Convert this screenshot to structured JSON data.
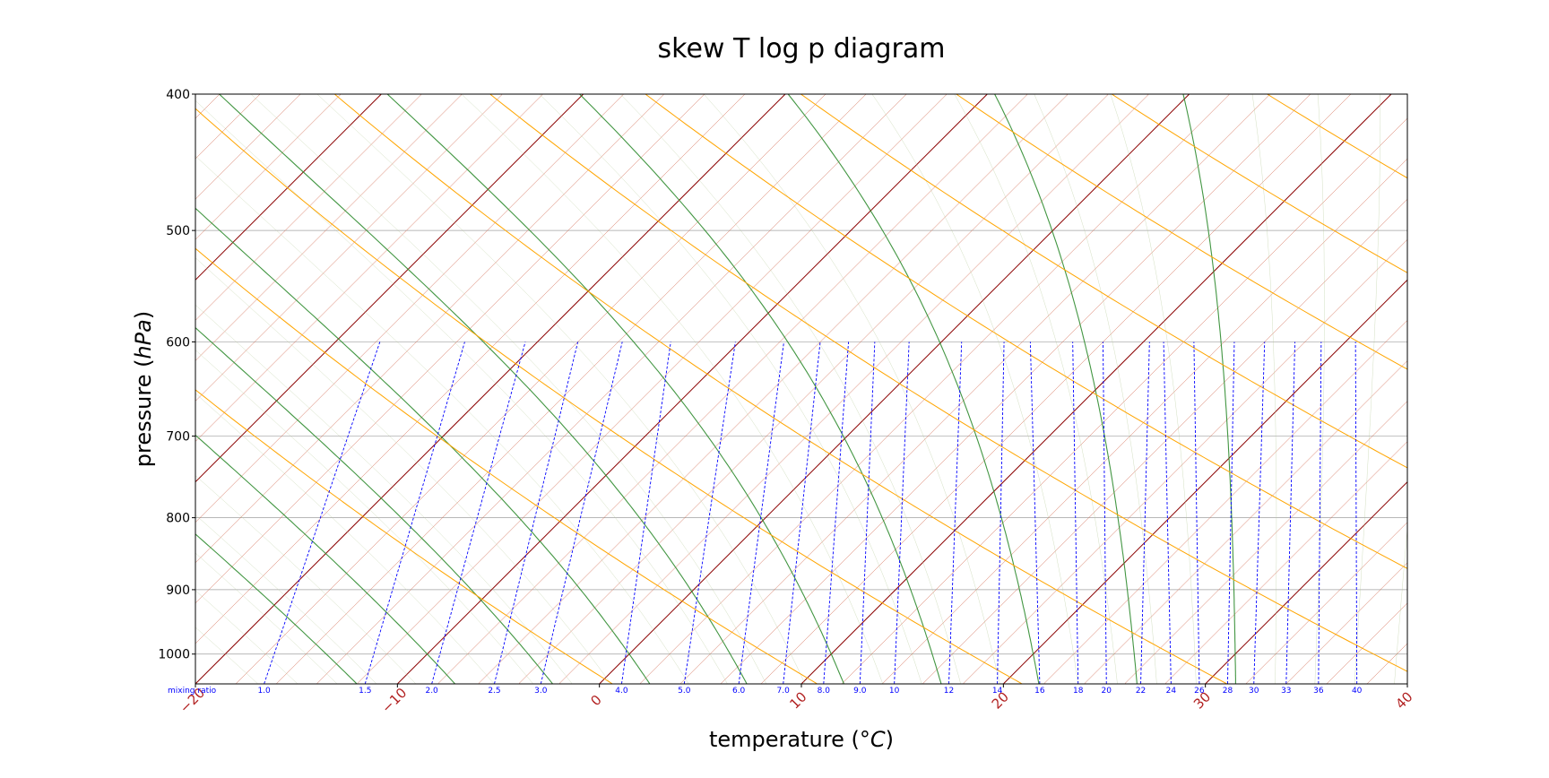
{
  "chart_data": {
    "type": "line",
    "title": "skew T log p diagram",
    "xlabel": "temperature (°C)",
    "ylabel": "pressure (hPa)",
    "ylabel_plain": "pressure (",
    "ylabel_unit": "hPa",
    "xlabel_plain": "temperature (",
    "xlabel_unit": "°C",
    "x_ticks": [
      "−20",
      "−10",
      "0",
      "10",
      "20",
      "30",
      "40"
    ],
    "x_tick_values": [
      -20,
      -10,
      0,
      10,
      20,
      30,
      40
    ],
    "xlim": [
      -20,
      40
    ],
    "y_ticks": [
      "400",
      "500",
      "600",
      "700",
      "800",
      "900",
      "1000"
    ],
    "y_tick_values": [
      400,
      500,
      600,
      700,
      800,
      900,
      1000
    ],
    "ylim": [
      1050,
      400
    ],
    "y_scale": "log",
    "grid": true,
    "mixing_ratio_label": "mixing ratio",
    "mixing_ratio_values": [
      "1.0",
      "1.5",
      "2.0",
      "2.5",
      "3.0",
      "4.0",
      "5.0",
      "6.0",
      "7.0",
      "8.0",
      "9.0",
      "10",
      "12",
      "14",
      "16",
      "18",
      "20",
      "22",
      "24",
      "26",
      "28",
      "30",
      "33",
      "36",
      "40"
    ],
    "mixing_ratio_bottom_temps": [
      -16.6,
      -11.6,
      -8.3,
      -5.2,
      -2.9,
      1.1,
      4.2,
      6.9,
      9.1,
      11.1,
      12.9,
      14.6,
      17.3,
      19.7,
      21.8,
      23.7,
      25.1,
      26.8,
      28.3,
      29.7,
      31.1,
      32.4,
      34.0,
      35.6,
      37.5
    ],
    "mixing_ratio_top_temps": [
      -27.8,
      -23.6,
      -20.6,
      -18.0,
      -15.8,
      -13.4,
      -10.2,
      -7.8,
      -6.0,
      -4.6,
      -3.3,
      -1.6,
      1.0,
      3.1,
      4.4,
      6.5,
      8.0,
      10.3,
      11.0,
      12.5,
      14.5,
      16.0,
      17.5,
      18.8,
      20.5
    ],
    "isotherm_step": 2,
    "isotherm_major_step": 10,
    "dry_adiabat_thetas": [
      270,
      280,
      290,
      300,
      310,
      320,
      330,
      340,
      350,
      360,
      370
    ],
    "moist_adiabat_wb": [
      -15,
      -10,
      -5,
      0,
      5,
      10,
      15,
      20,
      25,
      30
    ],
    "colors": {
      "isotherm": "#d2694f",
      "isotherm_major": "#8b0000",
      "dry_adiabat": "#ffa500",
      "moist_adiabat": "#2e8b2e",
      "moist_adiabat_faint": "#b5c99a",
      "mixing_ratio": "#0000ff",
      "grid": "#a0a0a0",
      "x_tick_label": "#b22222",
      "axis": "#000000"
    }
  }
}
